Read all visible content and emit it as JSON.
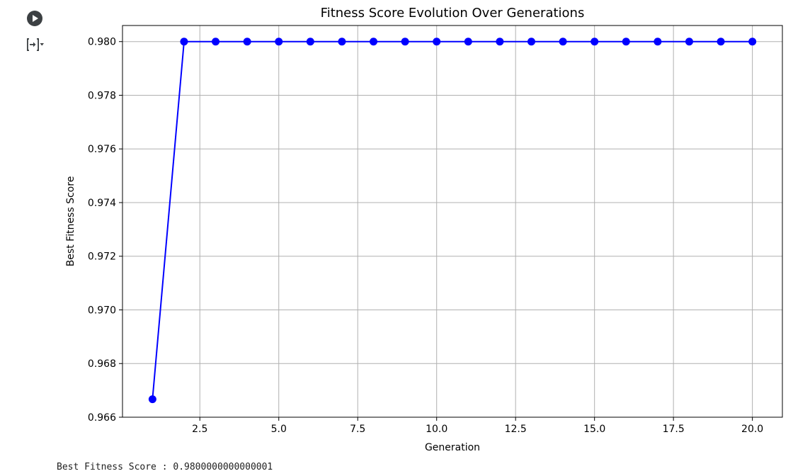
{
  "cell": {
    "run_icon": "play-circle-icon",
    "output_toggle_icon": "output-collapse-icon"
  },
  "output": {
    "stdout_label": "Best Fitness Score : ",
    "stdout_value": "0.9800000000000001"
  },
  "colors": {
    "series": "#0000ff",
    "grid": "#b0b0b0",
    "axis": "#000000",
    "icon": "#3c4043"
  },
  "chart_data": {
    "type": "line",
    "title": "Fitness Score Evolution Over Generations",
    "xlabel": "Generation",
    "ylabel": "Best Fitness Score",
    "x": [
      1,
      2,
      3,
      4,
      5,
      6,
      7,
      8,
      9,
      10,
      11,
      12,
      13,
      14,
      15,
      16,
      17,
      18,
      19,
      20
    ],
    "y": [
      0.96667,
      0.98,
      0.98,
      0.98,
      0.98,
      0.98,
      0.98,
      0.98,
      0.98,
      0.98,
      0.98,
      0.98,
      0.98,
      0.98,
      0.98,
      0.98,
      0.98,
      0.98,
      0.98,
      0.98
    ],
    "xlim": [
      0.05,
      20.95
    ],
    "ylim": [
      0.966,
      0.9806
    ],
    "xticks": [
      2.5,
      5.0,
      7.5,
      10.0,
      12.5,
      15.0,
      17.5,
      20.0
    ],
    "xtick_labels": [
      "2.5",
      "5.0",
      "7.5",
      "10.0",
      "12.5",
      "15.0",
      "17.5",
      "20.0"
    ],
    "yticks": [
      0.966,
      0.968,
      0.97,
      0.972,
      0.974,
      0.976,
      0.978,
      0.98
    ],
    "ytick_labels": [
      "0.966",
      "0.968",
      "0.970",
      "0.972",
      "0.974",
      "0.976",
      "0.978",
      "0.980"
    ],
    "grid": true,
    "marker": "circle",
    "legend": "none"
  }
}
